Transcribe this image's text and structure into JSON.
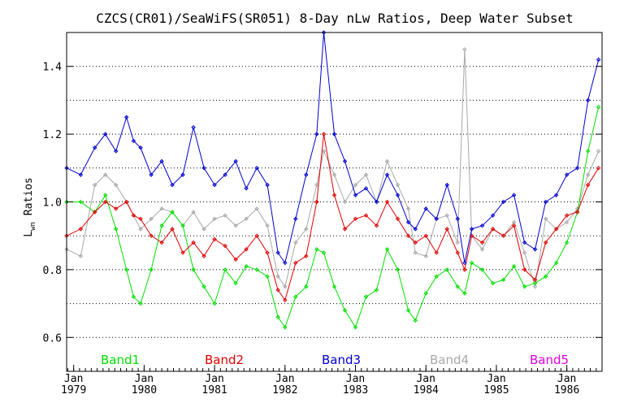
{
  "chart_data": {
    "type": "line",
    "title": "CZCS(CR01)/SeaWiFS(SR051) 8-Day nLw Ratios, Deep Water Subset",
    "ylabel_main": "L",
    "ylabel_sub": "wn",
    "ylabel_rest": " Ratios",
    "xlabel": "",
    "ylim": [
      0.5,
      1.5
    ],
    "xlim": [
      1978.9,
      1986.5
    ],
    "grid": "horizontal dotted",
    "legend_placement": "bottom",
    "y_ticks": [
      {
        "value": 0.6,
        "label": "0.6"
      },
      {
        "value": 0.8,
        "label": "0.8"
      },
      {
        "value": 1.0,
        "label": "1.0"
      },
      {
        "value": 1.2,
        "label": "1.2"
      },
      {
        "value": 1.4,
        "label": "1.4"
      }
    ],
    "y_grid": [
      0.6,
      0.7,
      0.8,
      0.9,
      1.0,
      1.1,
      1.2,
      1.3,
      1.4
    ],
    "x_ticks": [
      {
        "value": 1979.0,
        "month": "Jan",
        "year": "1979"
      },
      {
        "value": 1980.0,
        "month": "Jan",
        "year": "1980"
      },
      {
        "value": 1981.0,
        "month": "Jan",
        "year": "1981"
      },
      {
        "value": 1982.0,
        "month": "Jan",
        "year": "1982"
      },
      {
        "value": 1983.0,
        "month": "Jan",
        "year": "1983"
      },
      {
        "value": 1984.0,
        "month": "Jan",
        "year": "1984"
      },
      {
        "value": 1985.0,
        "month": "Jan",
        "year": "1985"
      },
      {
        "value": 1986.0,
        "month": "Jan",
        "year": "1986"
      }
    ],
    "series": [
      {
        "name": "Band1",
        "color": "#00e000",
        "x": [
          1978.9,
          1979.1,
          1979.3,
          1979.45,
          1979.6,
          1979.75,
          1979.85,
          1979.95,
          1980.1,
          1980.25,
          1980.4,
          1980.55,
          1980.7,
          1980.85,
          1981.0,
          1981.15,
          1981.3,
          1981.45,
          1981.6,
          1981.75,
          1981.9,
          1982.0,
          1982.15,
          1982.3,
          1982.45,
          1982.55,
          1982.7,
          1982.85,
          1983.0,
          1983.15,
          1983.3,
          1983.45,
          1983.6,
          1983.75,
          1983.85,
          1984.0,
          1984.15,
          1984.3,
          1984.45,
          1984.55,
          1984.65,
          1984.8,
          1984.95,
          1985.1,
          1985.25,
          1985.4,
          1985.55,
          1985.7,
          1985.85,
          1986.0,
          1986.15,
          1986.3,
          1986.45
        ],
        "values": [
          1.0,
          1.0,
          0.97,
          1.02,
          0.92,
          0.8,
          0.72,
          0.7,
          0.8,
          0.93,
          0.97,
          0.93,
          0.8,
          0.75,
          0.7,
          0.8,
          0.76,
          0.81,
          0.8,
          0.78,
          0.66,
          0.63,
          0.72,
          0.75,
          0.86,
          0.85,
          0.75,
          0.68,
          0.63,
          0.72,
          0.74,
          0.86,
          0.8,
          0.68,
          0.65,
          0.73,
          0.78,
          0.8,
          0.75,
          0.73,
          0.82,
          0.8,
          0.76,
          0.77,
          0.81,
          0.75,
          0.76,
          0.78,
          0.82,
          0.88,
          0.97,
          1.15,
          1.28
        ]
      },
      {
        "name": "Band2",
        "color": "#e00000",
        "x": [
          1978.9,
          1979.1,
          1979.3,
          1979.45,
          1979.6,
          1979.75,
          1979.85,
          1979.95,
          1980.1,
          1980.25,
          1980.4,
          1980.55,
          1980.7,
          1980.85,
          1981.0,
          1981.15,
          1981.3,
          1981.45,
          1981.6,
          1981.75,
          1981.9,
          1982.0,
          1982.15,
          1982.3,
          1982.45,
          1982.55,
          1982.7,
          1982.85,
          1983.0,
          1983.15,
          1983.3,
          1983.45,
          1983.6,
          1983.75,
          1983.85,
          1984.0,
          1984.15,
          1984.3,
          1984.45,
          1984.55,
          1984.65,
          1984.8,
          1984.95,
          1985.1,
          1985.25,
          1985.4,
          1985.55,
          1985.7,
          1985.85,
          1986.0,
          1986.15,
          1986.3,
          1986.45
        ],
        "values": [
          0.9,
          0.92,
          0.97,
          1.0,
          0.98,
          1.0,
          0.96,
          0.95,
          0.9,
          0.88,
          0.92,
          0.85,
          0.88,
          0.84,
          0.89,
          0.87,
          0.83,
          0.86,
          0.9,
          0.85,
          0.74,
          0.71,
          0.82,
          0.84,
          1.0,
          1.2,
          1.02,
          0.92,
          0.95,
          0.96,
          0.93,
          1.0,
          0.95,
          0.9,
          0.88,
          0.9,
          0.85,
          0.92,
          0.85,
          0.8,
          0.9,
          0.88,
          0.92,
          0.9,
          0.93,
          0.8,
          0.77,
          0.88,
          0.92,
          0.96,
          0.97,
          1.05,
          1.1
        ]
      },
      {
        "name": "Band3",
        "color": "#0000d0",
        "x": [
          1978.9,
          1979.1,
          1979.3,
          1979.45,
          1979.6,
          1979.75,
          1979.85,
          1979.95,
          1980.1,
          1980.25,
          1980.4,
          1980.55,
          1980.7,
          1980.85,
          1981.0,
          1981.15,
          1981.3,
          1981.45,
          1981.6,
          1981.75,
          1981.9,
          1982.0,
          1982.15,
          1982.3,
          1982.45,
          1982.55,
          1982.7,
          1982.85,
          1983.0,
          1983.15,
          1983.3,
          1983.45,
          1983.6,
          1983.75,
          1983.85,
          1984.0,
          1984.15,
          1984.3,
          1984.45,
          1984.55,
          1984.65,
          1984.8,
          1984.95,
          1985.1,
          1985.25,
          1985.4,
          1985.55,
          1985.7,
          1985.85,
          1986.0,
          1986.15,
          1986.3,
          1986.45
        ],
        "values": [
          1.1,
          1.08,
          1.16,
          1.2,
          1.15,
          1.25,
          1.18,
          1.16,
          1.08,
          1.12,
          1.05,
          1.08,
          1.22,
          1.1,
          1.05,
          1.08,
          1.12,
          1.04,
          1.1,
          1.05,
          0.85,
          0.82,
          0.95,
          1.08,
          1.2,
          1.5,
          1.2,
          1.12,
          1.02,
          1.04,
          1.0,
          1.08,
          1.02,
          0.94,
          0.92,
          0.98,
          0.95,
          1.05,
          0.95,
          0.82,
          0.92,
          0.93,
          0.96,
          1.0,
          1.02,
          0.88,
          0.86,
          1.0,
          1.02,
          1.08,
          1.1,
          1.3,
          1.42
        ]
      },
      {
        "name": "Band4",
        "color": "#a8a8a8",
        "x": [
          1978.9,
          1979.1,
          1979.3,
          1979.45,
          1979.6,
          1979.75,
          1979.85,
          1979.95,
          1980.1,
          1980.25,
          1980.4,
          1980.55,
          1980.7,
          1980.85,
          1981.0,
          1981.15,
          1981.3,
          1981.45,
          1981.6,
          1981.75,
          1981.9,
          1982.0,
          1982.15,
          1982.3,
          1982.45,
          1982.55,
          1982.7,
          1982.85,
          1983.0,
          1983.15,
          1983.3,
          1983.45,
          1983.6,
          1983.75,
          1983.85,
          1984.0,
          1984.15,
          1984.3,
          1984.45,
          1984.55,
          1984.65,
          1984.8,
          1984.95,
          1985.1,
          1985.25,
          1985.4,
          1985.55,
          1985.7,
          1985.85,
          1986.0,
          1986.15,
          1986.3,
          1986.45
        ],
        "values": [
          0.86,
          0.84,
          1.05,
          1.08,
          1.05,
          1.0,
          0.96,
          0.92,
          0.95,
          0.98,
          0.97,
          0.93,
          0.97,
          0.92,
          0.95,
          0.96,
          0.93,
          0.95,
          0.98,
          0.93,
          0.78,
          0.75,
          0.88,
          0.92,
          1.05,
          1.15,
          1.08,
          1.0,
          1.05,
          1.08,
          1.0,
          1.12,
          1.05,
          0.98,
          0.85,
          0.84,
          0.95,
          0.96,
          0.88,
          1.45,
          0.9,
          0.86,
          0.92,
          0.9,
          0.94,
          0.85,
          0.75,
          0.95,
          0.92,
          0.94,
          0.98,
          1.08,
          1.15
        ]
      },
      {
        "name": "Band5",
        "color": "#e000e0",
        "x": [],
        "values": []
      }
    ]
  }
}
